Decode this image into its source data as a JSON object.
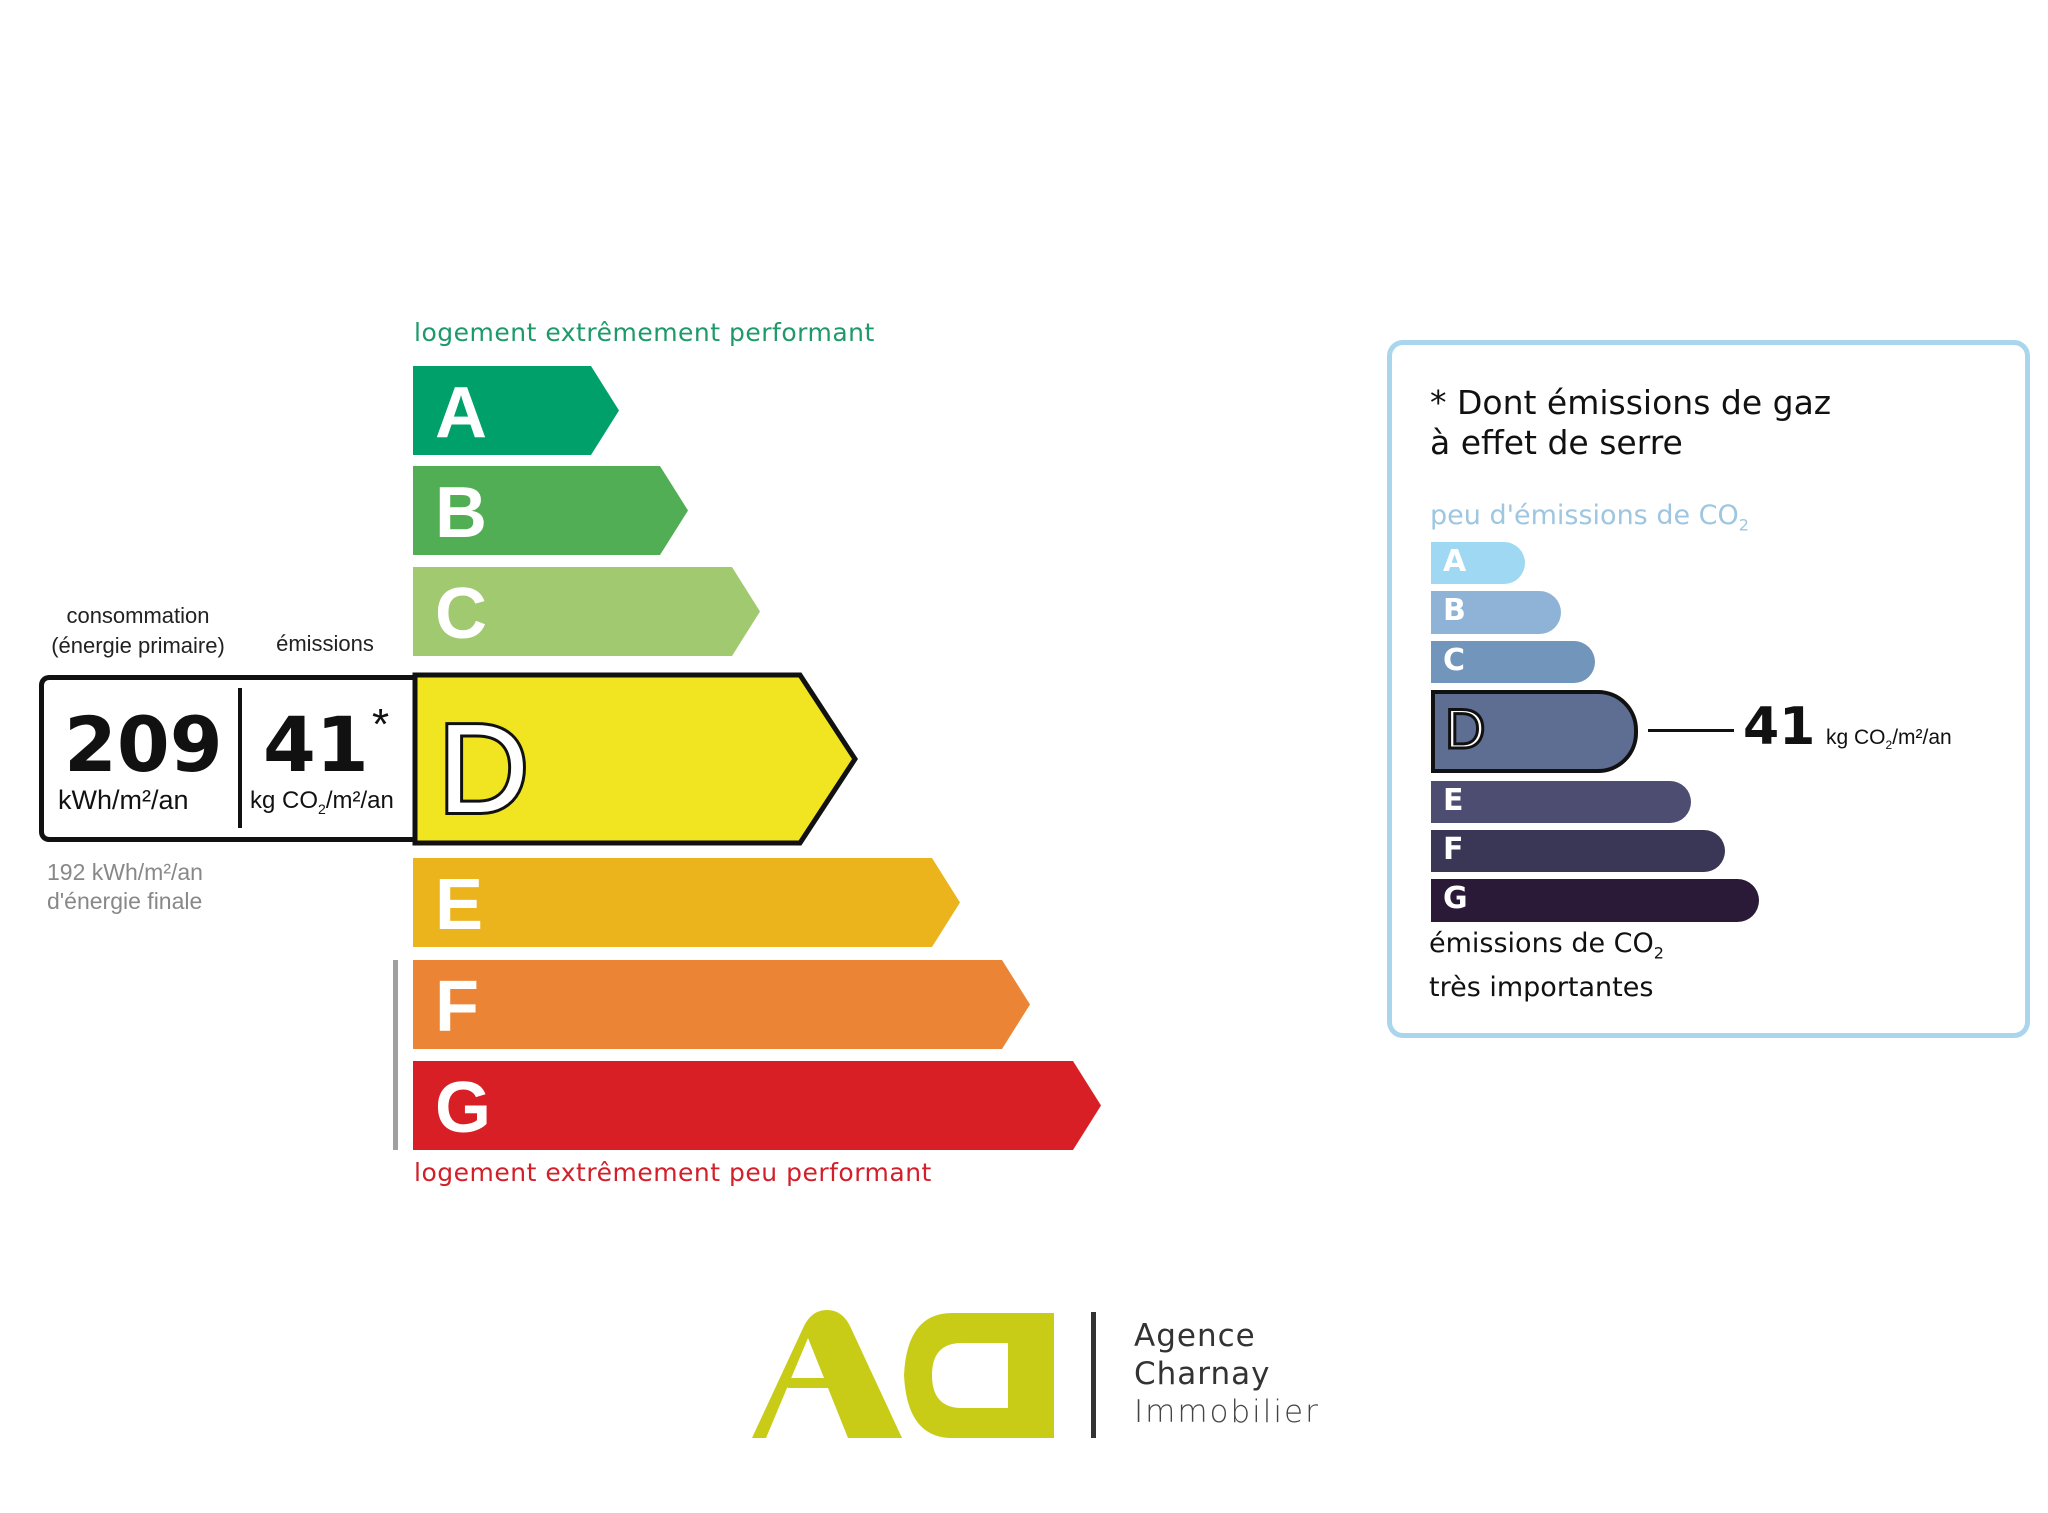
{
  "energy_label": {
    "top_label": "logement extrêmement performant",
    "bottom_label": "logement extrêmement peu performant",
    "classes": [
      {
        "letter": "A",
        "color": "#00a06b"
      },
      {
        "letter": "B",
        "color": "#52ae55"
      },
      {
        "letter": "C",
        "color": "#a1c96f"
      },
      {
        "letter": "D",
        "color": "#f0e520"
      },
      {
        "letter": "E",
        "color": "#ebb31c"
      },
      {
        "letter": "F",
        "color": "#eb8434"
      },
      {
        "letter": "G",
        "color": "#d81f26"
      }
    ],
    "current_class": "D",
    "header_consumption_1": "consommation",
    "header_consumption_2": "(énergie primaire)",
    "header_emissions": "émissions",
    "consumption_value": "209",
    "consumption_unit": "kWh/m²/an",
    "emissions_value": "41",
    "emissions_asterisk": "*",
    "emissions_unit_pre": "kg CO",
    "emissions_unit_sub": "2",
    "emissions_unit_post": "/m²/an",
    "final_energy_1": "192 kWh/m²/an",
    "final_energy_2": "d'énergie finale"
  },
  "ghg_label": {
    "title_1": "* Dont émissions de gaz",
    "title_2": "à effet de serre",
    "top_label": "peu d'émissions de CO",
    "top_label_sub": "2",
    "classes": [
      {
        "letter": "A",
        "color": "#9fd8f3"
      },
      {
        "letter": "B",
        "color": "#8fb3d6"
      },
      {
        "letter": "C",
        "color": "#7295bb"
      },
      {
        "letter": "D",
        "color": "#5d6e92"
      },
      {
        "letter": "E",
        "color": "#4c4d71"
      },
      {
        "letter": "F",
        "color": "#3a3756"
      },
      {
        "letter": "G",
        "color": "#2a1a37"
      }
    ],
    "current_class": "D",
    "value": "41",
    "unit_pre": "kg CO",
    "unit_sub": "2",
    "unit_post": "/m²/an",
    "bottom_label_1": "émissions de CO",
    "bottom_label_1_sub": "2",
    "bottom_label_2": "très importantes",
    "frame_color": "#a9d6ec"
  },
  "logo": {
    "mark": "ACI",
    "line1": "Agence",
    "line2": "Charnay",
    "line3": "Immobilier",
    "color": "#c8cc17"
  }
}
